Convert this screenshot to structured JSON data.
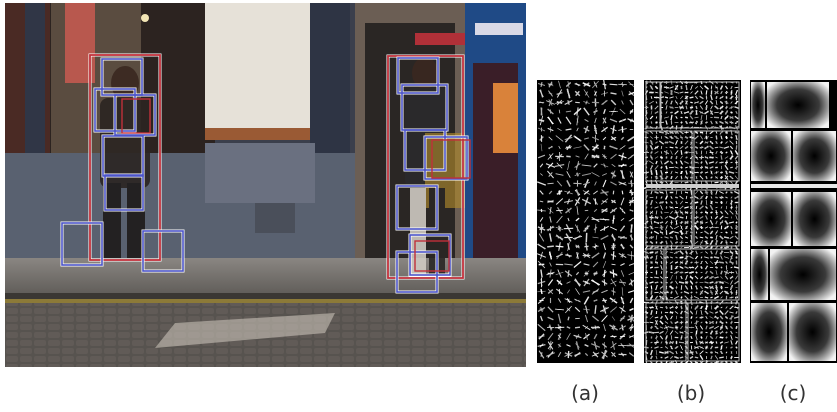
{
  "figure": {
    "captions": [
      "(a)",
      "(b)",
      "(c)"
    ]
  },
  "colors": {
    "root_box": "#c0303a",
    "part_box": "#4c55c8",
    "box_outline": "#ffffff"
  },
  "icons": {
    "scene": "street-scene-image",
    "panel_a": "hog-root-filter-image",
    "panel_b": "hog-part-filters-image",
    "panel_c": "deformation-cost-image"
  }
}
